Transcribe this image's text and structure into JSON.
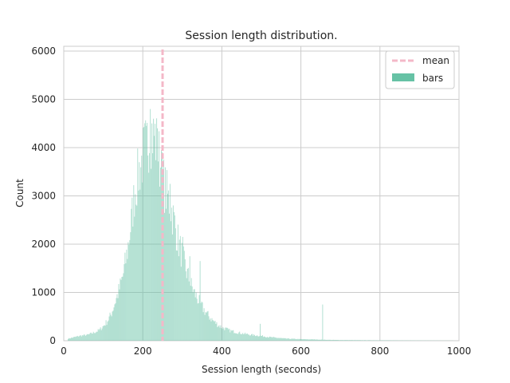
{
  "chart_data": {
    "type": "bar",
    "title": "Session length distribution.",
    "xlabel": "Session length (seconds)",
    "ylabel": "Count",
    "xlim": [
      0,
      1000
    ],
    "ylim": [
      0,
      6100
    ],
    "x_ticks": [
      0,
      200,
      400,
      600,
      800,
      1000
    ],
    "y_ticks": [
      0,
      1000,
      2000,
      3000,
      4000,
      5000,
      6000
    ],
    "grid": true,
    "legend_position": "top-right",
    "mean": 250,
    "bin_width": 2,
    "colors": {
      "bars": "#66c2a5",
      "mean": "#f4b8c8"
    },
    "series": [
      {
        "name": "mean",
        "kind": "line"
      },
      {
        "name": "bars",
        "kind": "bar"
      }
    ],
    "histogram": {
      "x": [
        10,
        20,
        30,
        40,
        50,
        60,
        70,
        80,
        90,
        100,
        110,
        120,
        130,
        140,
        150,
        160,
        170,
        180,
        190,
        200,
        210,
        220,
        230,
        240,
        250,
        260,
        270,
        280,
        290,
        300,
        310,
        320,
        330,
        340,
        350,
        360,
        370,
        380,
        390,
        400,
        420,
        440,
        460,
        480,
        500,
        520,
        540,
        560,
        580,
        600,
        620,
        640,
        650,
        660,
        680,
        700,
        750,
        800,
        850,
        900,
        950,
        980
      ],
      "y": [
        40,
        60,
        80,
        100,
        110,
        120,
        150,
        180,
        220,
        300,
        400,
        550,
        800,
        1050,
        1350,
        1800,
        2400,
        3100,
        3500,
        3800,
        4100,
        4350,
        4250,
        3850,
        3350,
        3050,
        2800,
        2450,
        2050,
        1750,
        1450,
        1200,
        1000,
        850,
        700,
        580,
        480,
        400,
        330,
        280,
        210,
        170,
        140,
        115,
        100,
        75,
        60,
        45,
        38,
        32,
        28,
        25,
        22,
        20,
        16,
        14,
        10,
        8,
        6,
        4,
        3,
        2
      ]
    },
    "spikes": [
      {
        "x": 218,
        "y": 4800
      },
      {
        "x": 226,
        "y": 4600
      },
      {
        "x": 208,
        "y": 4450
      },
      {
        "x": 236,
        "y": 4400
      },
      {
        "x": 246,
        "y": 3950
      },
      {
        "x": 268,
        "y": 3250
      },
      {
        "x": 300,
        "y": 2150
      },
      {
        "x": 318,
        "y": 1750
      },
      {
        "x": 344,
        "y": 1650
      },
      {
        "x": 496,
        "y": 350
      },
      {
        "x": 654,
        "y": 750
      }
    ]
  }
}
